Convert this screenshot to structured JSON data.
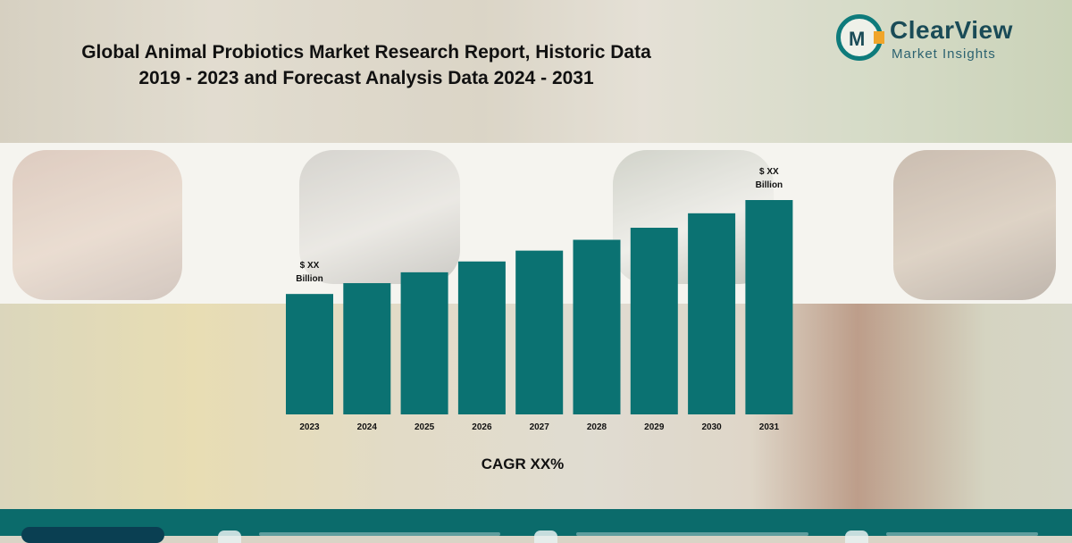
{
  "header": {
    "title_line1": "Global Animal Probiotics Market Research Report, Historic Data",
    "title_line2": "2019 - 2023 and Forecast Analysis Data 2024 - 2031"
  },
  "logo": {
    "name": "ClearView",
    "tagline": "Market Insights",
    "mark_letter": "M"
  },
  "colors": {
    "bar": "#0b7272",
    "brand_teal": "#0e7b7b",
    "brand_orange": "#f0a52a",
    "footer": "#0b6b6b"
  },
  "chart_data": {
    "type": "bar",
    "categories": [
      "2023",
      "2024",
      "2025",
      "2026",
      "2027",
      "2028",
      "2029",
      "2030",
      "2031"
    ],
    "values": [
      1.0,
      1.09,
      1.18,
      1.27,
      1.36,
      1.45,
      1.55,
      1.67,
      1.78
    ],
    "value_note": "relative heights only; no y-axis printed",
    "ylim": [
      0,
      1.78
    ],
    "annotations": [
      {
        "category": "2023",
        "line1": "$ XX",
        "line2": "Billion"
      },
      {
        "category": "2031",
        "line1": "$ XX",
        "line2": "Billion"
      }
    ],
    "footnote": "CAGR XX%",
    "grid": false,
    "legend": "none"
  }
}
